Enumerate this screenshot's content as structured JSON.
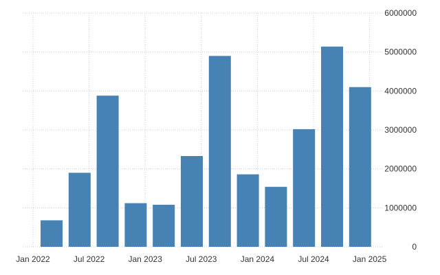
{
  "chart_data": {
    "type": "bar",
    "categories": [
      "2022-Q1",
      "2022-Q2",
      "2022-Q3",
      "2022-Q4",
      "2023-Q1",
      "2023-Q2",
      "2023-Q3",
      "2023-Q4",
      "2024-Q1",
      "2024-Q2",
      "2024-Q3",
      "2024-Q4"
    ],
    "values": [
      680000,
      1900000,
      3880000,
      1120000,
      1080000,
      2330000,
      4900000,
      1860000,
      1540000,
      3020000,
      5140000,
      4100000
    ],
    "x_tick_labels": [
      "Jan 2022",
      "Jul 2022",
      "Jan 2023",
      "Jul 2023",
      "Jan 2024",
      "Jul 2024",
      "Jan 2025"
    ],
    "y_ticks": [
      "0",
      "1000000",
      "2000000",
      "3000000",
      "4000000",
      "5000000",
      "6000000"
    ],
    "ylim": [
      0,
      6000000
    ],
    "grid": true,
    "y_axis_side": "right",
    "colors": {
      "bar": "#4682b4",
      "grid": "#cccccc",
      "text": "#333333"
    }
  }
}
